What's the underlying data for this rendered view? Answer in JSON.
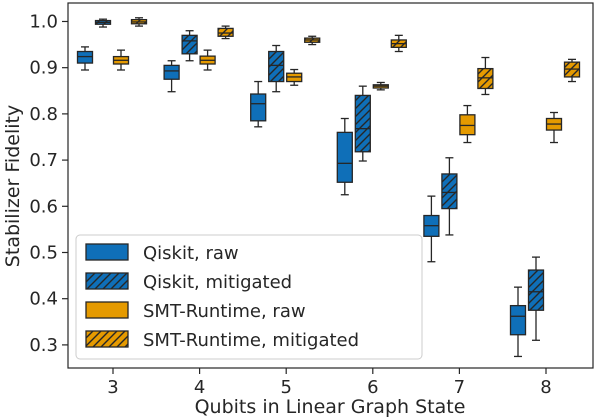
{
  "colors": {
    "qiskit": "#0F6FB8",
    "smt": "#E59A00",
    "stroke": "#262626",
    "frame": "#262626"
  },
  "chart_data": {
    "type": "box",
    "xlabel": "Qubits in Linear Graph State",
    "ylabel": "Stabilizer Fidelity",
    "categories": [
      "3",
      "4",
      "5",
      "6",
      "7",
      "8"
    ],
    "ylim": [
      0.25,
      1.04
    ],
    "yticks": [
      0.3,
      0.4,
      0.5,
      0.6,
      0.7,
      0.8,
      0.9,
      1.0
    ],
    "ytick_labels": [
      "0.3",
      "0.4",
      "0.5",
      "0.6",
      "0.7",
      "0.8",
      "0.9",
      "1.0"
    ],
    "grid": false,
    "legend_position": "lower-left",
    "series": [
      {
        "name": "Qiskit, raw",
        "color": "#0F6FB8",
        "hatch": false,
        "boxes": [
          {
            "whislo": 0.895,
            "q1": 0.91,
            "med": 0.924,
            "q3": 0.935,
            "whishi": 0.945
          },
          {
            "whislo": 0.848,
            "q1": 0.875,
            "med": 0.893,
            "q3": 0.905,
            "whishi": 0.915
          },
          {
            "whislo": 0.772,
            "q1": 0.785,
            "med": 0.822,
            "q3": 0.843,
            "whishi": 0.87
          },
          {
            "whislo": 0.625,
            "q1": 0.652,
            "med": 0.693,
            "q3": 0.76,
            "whishi": 0.79
          },
          {
            "whislo": 0.48,
            "q1": 0.535,
            "med": 0.558,
            "q3": 0.58,
            "whishi": 0.622
          },
          {
            "whislo": 0.275,
            "q1": 0.322,
            "med": 0.362,
            "q3": 0.385,
            "whishi": 0.425
          }
        ]
      },
      {
        "name": "Qiskit, mitigated",
        "color": "#0F6FB8",
        "hatch": true,
        "boxes": [
          {
            "whislo": 0.988,
            "q1": 0.994,
            "med": 0.998,
            "q3": 1.002,
            "whishi": 1.005
          },
          {
            "whislo": 0.915,
            "q1": 0.93,
            "med": 0.958,
            "q3": 0.97,
            "whishi": 0.98
          },
          {
            "whislo": 0.848,
            "q1": 0.87,
            "med": 0.905,
            "q3": 0.935,
            "whishi": 0.948
          },
          {
            "whislo": 0.698,
            "q1": 0.718,
            "med": 0.768,
            "q3": 0.84,
            "whishi": 0.86
          },
          {
            "whislo": 0.538,
            "q1": 0.595,
            "med": 0.63,
            "q3": 0.67,
            "whishi": 0.705
          },
          {
            "whislo": 0.31,
            "q1": 0.375,
            "med": 0.415,
            "q3": 0.462,
            "whishi": 0.49
          }
        ]
      },
      {
        "name": "SMT-Runtime, raw",
        "color": "#E59A00",
        "hatch": false,
        "boxes": [
          {
            "whislo": 0.895,
            "q1": 0.908,
            "med": 0.916,
            "q3": 0.924,
            "whishi": 0.938
          },
          {
            "whislo": 0.895,
            "q1": 0.908,
            "med": 0.916,
            "q3": 0.925,
            "whishi": 0.938
          },
          {
            "whislo": 0.862,
            "q1": 0.87,
            "med": 0.88,
            "q3": 0.888,
            "whishi": 0.896
          },
          {
            "whislo": 0.852,
            "q1": 0.856,
            "med": 0.86,
            "q3": 0.863,
            "whishi": 0.868
          },
          {
            "whislo": 0.738,
            "q1": 0.755,
            "med": 0.775,
            "q3": 0.798,
            "whishi": 0.818
          },
          {
            "whislo": 0.738,
            "q1": 0.765,
            "med": 0.778,
            "q3": 0.79,
            "whishi": 0.803
          }
        ]
      },
      {
        "name": "SMT-Runtime, mitigated",
        "color": "#E59A00",
        "hatch": true,
        "boxes": [
          {
            "whislo": 0.99,
            "q1": 0.995,
            "med": 0.999,
            "q3": 1.004,
            "whishi": 1.008
          },
          {
            "whislo": 0.963,
            "q1": 0.968,
            "med": 0.975,
            "q3": 0.985,
            "whishi": 0.99
          },
          {
            "whislo": 0.95,
            "q1": 0.955,
            "med": 0.96,
            "q3": 0.964,
            "whishi": 0.968
          },
          {
            "whislo": 0.935,
            "q1": 0.944,
            "med": 0.952,
            "q3": 0.96,
            "whishi": 0.97
          },
          {
            "whislo": 0.842,
            "q1": 0.855,
            "med": 0.878,
            "q3": 0.898,
            "whishi": 0.922
          },
          {
            "whislo": 0.87,
            "q1": 0.88,
            "med": 0.897,
            "q3": 0.912,
            "whishi": 0.918
          }
        ]
      }
    ]
  }
}
